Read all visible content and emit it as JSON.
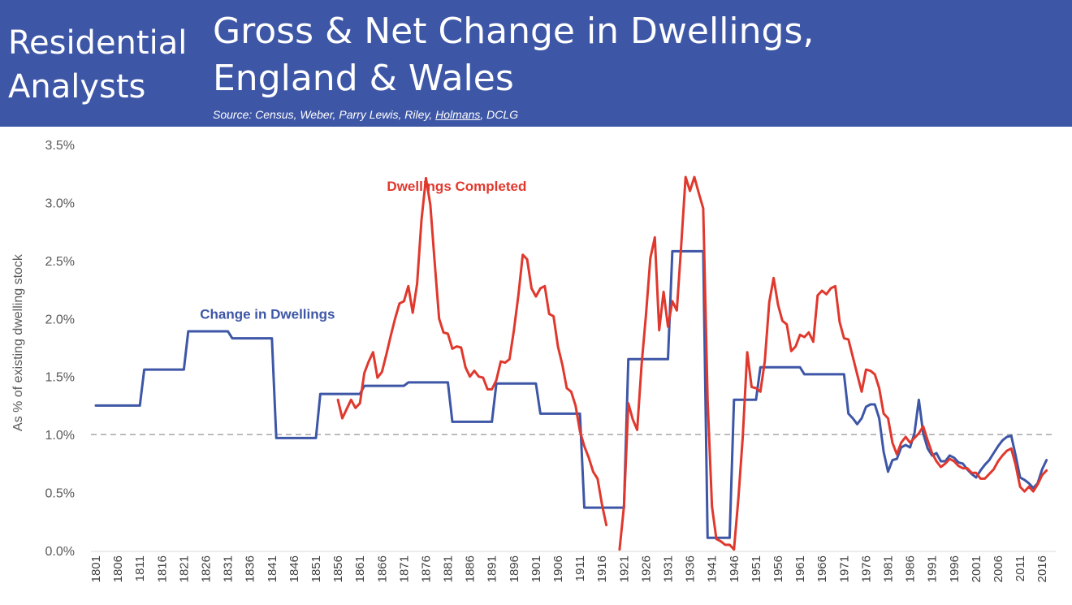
{
  "header": {
    "brand_line1": "Residential",
    "brand_line2": "Analysts",
    "title_line1": "Gross & Net Change in Dwellings,",
    "title_line2": "England & Wales",
    "source_prefix": "Source: Census, Weber, Parry Lewis, Riley, ",
    "source_underlined": "Holmans",
    "source_suffix": ", DCLG",
    "background_color": "#3d56a6"
  },
  "chart_data": {
    "type": "line",
    "title": "Gross & Net Change in Dwellings, England & Wales",
    "ylabel": "As % of existing dwelling stock",
    "xlabel": "",
    "xlim": [
      1801,
      2018
    ],
    "ylim": [
      0,
      3.5
    ],
    "yticks": [
      "0.0%",
      "0.5%",
      "1.0%",
      "1.5%",
      "2.0%",
      "2.5%",
      "3.0%",
      "3.5%"
    ],
    "xticks": [
      "1801",
      "1806",
      "1811",
      "1816",
      "1821",
      "1826",
      "1831",
      "1836",
      "1841",
      "1846",
      "1851",
      "1856",
      "1861",
      "1866",
      "1871",
      "1876",
      "1881",
      "1886",
      "1891",
      "1896",
      "1901",
      "1906",
      "1911",
      "1916",
      "1921",
      "1926",
      "1931",
      "1936",
      "1941",
      "1946",
      "1951",
      "1956",
      "1961",
      "1966",
      "1971",
      "1976",
      "1981",
      "1986",
      "1991",
      "1996",
      "2001",
      "2006",
      "2011",
      "2016"
    ],
    "reference_line": {
      "y": 1.0,
      "style": "dashed",
      "color": "#a6a6a6"
    },
    "grid": false,
    "legend": "inline labels",
    "series": [
      {
        "name": "Dwellings Completed",
        "color": "#e0382d",
        "label_at": [
          1883,
          3.1
        ],
        "points": [
          [
            1856,
            1.3
          ],
          [
            1857,
            1.14
          ],
          [
            1858,
            1.22
          ],
          [
            1859,
            1.3
          ],
          [
            1860,
            1.23
          ],
          [
            1861,
            1.27
          ],
          [
            1862,
            1.53
          ],
          [
            1863,
            1.63
          ],
          [
            1864,
            1.71
          ],
          [
            1865,
            1.49
          ],
          [
            1866,
            1.54
          ],
          [
            1867,
            1.69
          ],
          [
            1868,
            1.85
          ],
          [
            1869,
            2.0
          ],
          [
            1870,
            2.13
          ],
          [
            1871,
            2.15
          ],
          [
            1872,
            2.28
          ],
          [
            1873,
            2.05
          ],
          [
            1874,
            2.3
          ],
          [
            1875,
            2.85
          ],
          [
            1876,
            3.21
          ],
          [
            1877,
            2.98
          ],
          [
            1878,
            2.48
          ],
          [
            1879,
            2.0
          ],
          [
            1880,
            1.88
          ],
          [
            1881,
            1.87
          ],
          [
            1882,
            1.74
          ],
          [
            1883,
            1.76
          ],
          [
            1884,
            1.75
          ],
          [
            1885,
            1.58
          ],
          [
            1886,
            1.5
          ],
          [
            1887,
            1.55
          ],
          [
            1888,
            1.5
          ],
          [
            1889,
            1.49
          ],
          [
            1890,
            1.39
          ],
          [
            1891,
            1.39
          ],
          [
            1892,
            1.47
          ],
          [
            1893,
            1.63
          ],
          [
            1894,
            1.62
          ],
          [
            1895,
            1.65
          ],
          [
            1896,
            1.9
          ],
          [
            1897,
            2.2
          ],
          [
            1898,
            2.55
          ],
          [
            1899,
            2.51
          ],
          [
            1900,
            2.26
          ],
          [
            1901,
            2.19
          ],
          [
            1902,
            2.26
          ],
          [
            1903,
            2.28
          ],
          [
            1904,
            2.04
          ],
          [
            1905,
            2.02
          ],
          [
            1906,
            1.76
          ],
          [
            1907,
            1.6
          ],
          [
            1908,
            1.4
          ],
          [
            1909,
            1.37
          ],
          [
            1910,
            1.25
          ],
          [
            1911,
            1.03
          ],
          [
            1912,
            0.9
          ],
          [
            1913,
            0.8
          ],
          [
            1914,
            0.68
          ],
          [
            1915,
            0.62
          ],
          [
            1916,
            0.4
          ],
          [
            1917,
            0.22
          ],
          [
            1920,
            0.01
          ],
          [
            1921,
            0.38
          ],
          [
            1922,
            1.27
          ],
          [
            1923,
            1.13
          ],
          [
            1924,
            1.04
          ],
          [
            1925,
            1.6
          ],
          [
            1926,
            2.03
          ],
          [
            1927,
            2.52
          ],
          [
            1928,
            2.7
          ],
          [
            1929,
            1.9
          ],
          [
            1930,
            2.23
          ],
          [
            1931,
            1.93
          ],
          [
            1932,
            2.15
          ],
          [
            1933,
            2.07
          ],
          [
            1934,
            2.63
          ],
          [
            1935,
            3.22
          ],
          [
            1936,
            3.1
          ],
          [
            1937,
            3.22
          ],
          [
            1938,
            3.08
          ],
          [
            1939,
            2.95
          ],
          [
            1940,
            1.3
          ],
          [
            1941,
            0.38
          ],
          [
            1942,
            0.1
          ],
          [
            1943,
            0.08
          ],
          [
            1944,
            0.05
          ],
          [
            1945,
            0.05
          ],
          [
            1946,
            0.01
          ],
          [
            1947,
            0.45
          ],
          [
            1948,
            0.98
          ],
          [
            1949,
            1.71
          ],
          [
            1950,
            1.41
          ],
          [
            1951,
            1.4
          ],
          [
            1952,
            1.37
          ],
          [
            1953,
            1.63
          ],
          [
            1954,
            2.14
          ],
          [
            1955,
            2.35
          ],
          [
            1956,
            2.12
          ],
          [
            1957,
            1.98
          ],
          [
            1958,
            1.95
          ],
          [
            1959,
            1.72
          ],
          [
            1960,
            1.76
          ],
          [
            1961,
            1.86
          ],
          [
            1962,
            1.84
          ],
          [
            1963,
            1.88
          ],
          [
            1964,
            1.8
          ],
          [
            1965,
            2.2
          ],
          [
            1966,
            2.24
          ],
          [
            1967,
            2.21
          ],
          [
            1968,
            2.26
          ],
          [
            1969,
            2.28
          ],
          [
            1970,
            1.97
          ],
          [
            1971,
            1.83
          ],
          [
            1972,
            1.82
          ],
          [
            1973,
            1.67
          ],
          [
            1974,
            1.52
          ],
          [
            1975,
            1.37
          ],
          [
            1976,
            1.56
          ],
          [
            1977,
            1.55
          ],
          [
            1978,
            1.52
          ],
          [
            1979,
            1.4
          ],
          [
            1980,
            1.18
          ],
          [
            1981,
            1.14
          ],
          [
            1982,
            0.93
          ],
          [
            1983,
            0.83
          ],
          [
            1984,
            0.93
          ],
          [
            1985,
            0.98
          ],
          [
            1986,
            0.93
          ],
          [
            1987,
            0.97
          ],
          [
            1988,
            1.01
          ],
          [
            1989,
            1.07
          ],
          [
            1990,
            0.95
          ],
          [
            1991,
            0.84
          ],
          [
            1992,
            0.77
          ],
          [
            1993,
            0.72
          ],
          [
            1994,
            0.75
          ],
          [
            1995,
            0.79
          ],
          [
            1996,
            0.77
          ],
          [
            1997,
            0.73
          ],
          [
            1998,
            0.71
          ],
          [
            1999,
            0.71
          ],
          [
            2000,
            0.67
          ],
          [
            2001,
            0.67
          ],
          [
            2002,
            0.62
          ],
          [
            2003,
            0.62
          ],
          [
            2004,
            0.66
          ],
          [
            2005,
            0.7
          ],
          [
            2006,
            0.77
          ],
          [
            2007,
            0.82
          ],
          [
            2008,
            0.86
          ],
          [
            2009,
            0.88
          ],
          [
            2010,
            0.74
          ],
          [
            2011,
            0.55
          ],
          [
            2012,
            0.51
          ],
          [
            2013,
            0.55
          ],
          [
            2014,
            0.51
          ],
          [
            2015,
            0.57
          ],
          [
            2016,
            0.65
          ],
          [
            2017,
            0.69
          ]
        ]
      },
      {
        "name": "Change in Dwellings",
        "color": "#3d56a6",
        "label_at": [
          1840,
          2.0
        ],
        "points": [
          [
            1801,
            1.25
          ],
          [
            1811,
            1.25
          ],
          [
            1812,
            1.56
          ],
          [
            1821,
            1.56
          ],
          [
            1822,
            1.89
          ],
          [
            1831,
            1.89
          ],
          [
            1832,
            1.83
          ],
          [
            1841,
            1.83
          ],
          [
            1842,
            0.97
          ],
          [
            1851,
            0.97
          ],
          [
            1852,
            1.35
          ],
          [
            1861,
            1.35
          ],
          [
            1862,
            1.42
          ],
          [
            1871,
            1.42
          ],
          [
            1872,
            1.45
          ],
          [
            1881,
            1.45
          ],
          [
            1882,
            1.11
          ],
          [
            1891,
            1.11
          ],
          [
            1892,
            1.44
          ],
          [
            1901,
            1.44
          ],
          [
            1902,
            1.18
          ],
          [
            1911,
            1.18
          ],
          [
            1912,
            0.37
          ],
          [
            1921,
            0.37
          ],
          [
            1922,
            1.65
          ],
          [
            1931,
            1.65
          ],
          [
            1932,
            2.58
          ],
          [
            1939,
            2.58
          ],
          [
            1940,
            0.11
          ],
          [
            1945,
            0.11
          ],
          [
            1946,
            1.3
          ],
          [
            1951,
            1.3
          ],
          [
            1952,
            1.58
          ],
          [
            1961,
            1.58
          ],
          [
            1962,
            1.52
          ],
          [
            1971,
            1.52
          ],
          [
            1972,
            1.18
          ],
          [
            1973,
            1.14
          ],
          [
            1974,
            1.09
          ],
          [
            1975,
            1.14
          ],
          [
            1976,
            1.24
          ],
          [
            1977,
            1.26
          ],
          [
            1978,
            1.26
          ],
          [
            1979,
            1.14
          ],
          [
            1980,
            0.85
          ],
          [
            1981,
            0.68
          ],
          [
            1982,
            0.78
          ],
          [
            1983,
            0.79
          ],
          [
            1984,
            0.89
          ],
          [
            1985,
            0.91
          ],
          [
            1986,
            0.89
          ],
          [
            1987,
            1.01
          ],
          [
            1988,
            1.3
          ],
          [
            1989,
            1.01
          ],
          [
            1990,
            0.88
          ],
          [
            1991,
            0.82
          ],
          [
            1992,
            0.84
          ],
          [
            1993,
            0.77
          ],
          [
            1994,
            0.77
          ],
          [
            1995,
            0.82
          ],
          [
            1996,
            0.8
          ],
          [
            1997,
            0.76
          ],
          [
            1998,
            0.75
          ],
          [
            1999,
            0.7
          ],
          [
            2000,
            0.66
          ],
          [
            2001,
            0.63
          ],
          [
            2002,
            0.69
          ],
          [
            2003,
            0.74
          ],
          [
            2004,
            0.78
          ],
          [
            2005,
            0.84
          ],
          [
            2006,
            0.9
          ],
          [
            2007,
            0.95
          ],
          [
            2008,
            0.98
          ],
          [
            2009,
            0.99
          ],
          [
            2010,
            0.82
          ],
          [
            2011,
            0.63
          ],
          [
            2012,
            0.61
          ],
          [
            2013,
            0.58
          ],
          [
            2014,
            0.54
          ],
          [
            2015,
            0.58
          ],
          [
            2016,
            0.7
          ],
          [
            2017,
            0.78
          ]
        ]
      }
    ]
  }
}
